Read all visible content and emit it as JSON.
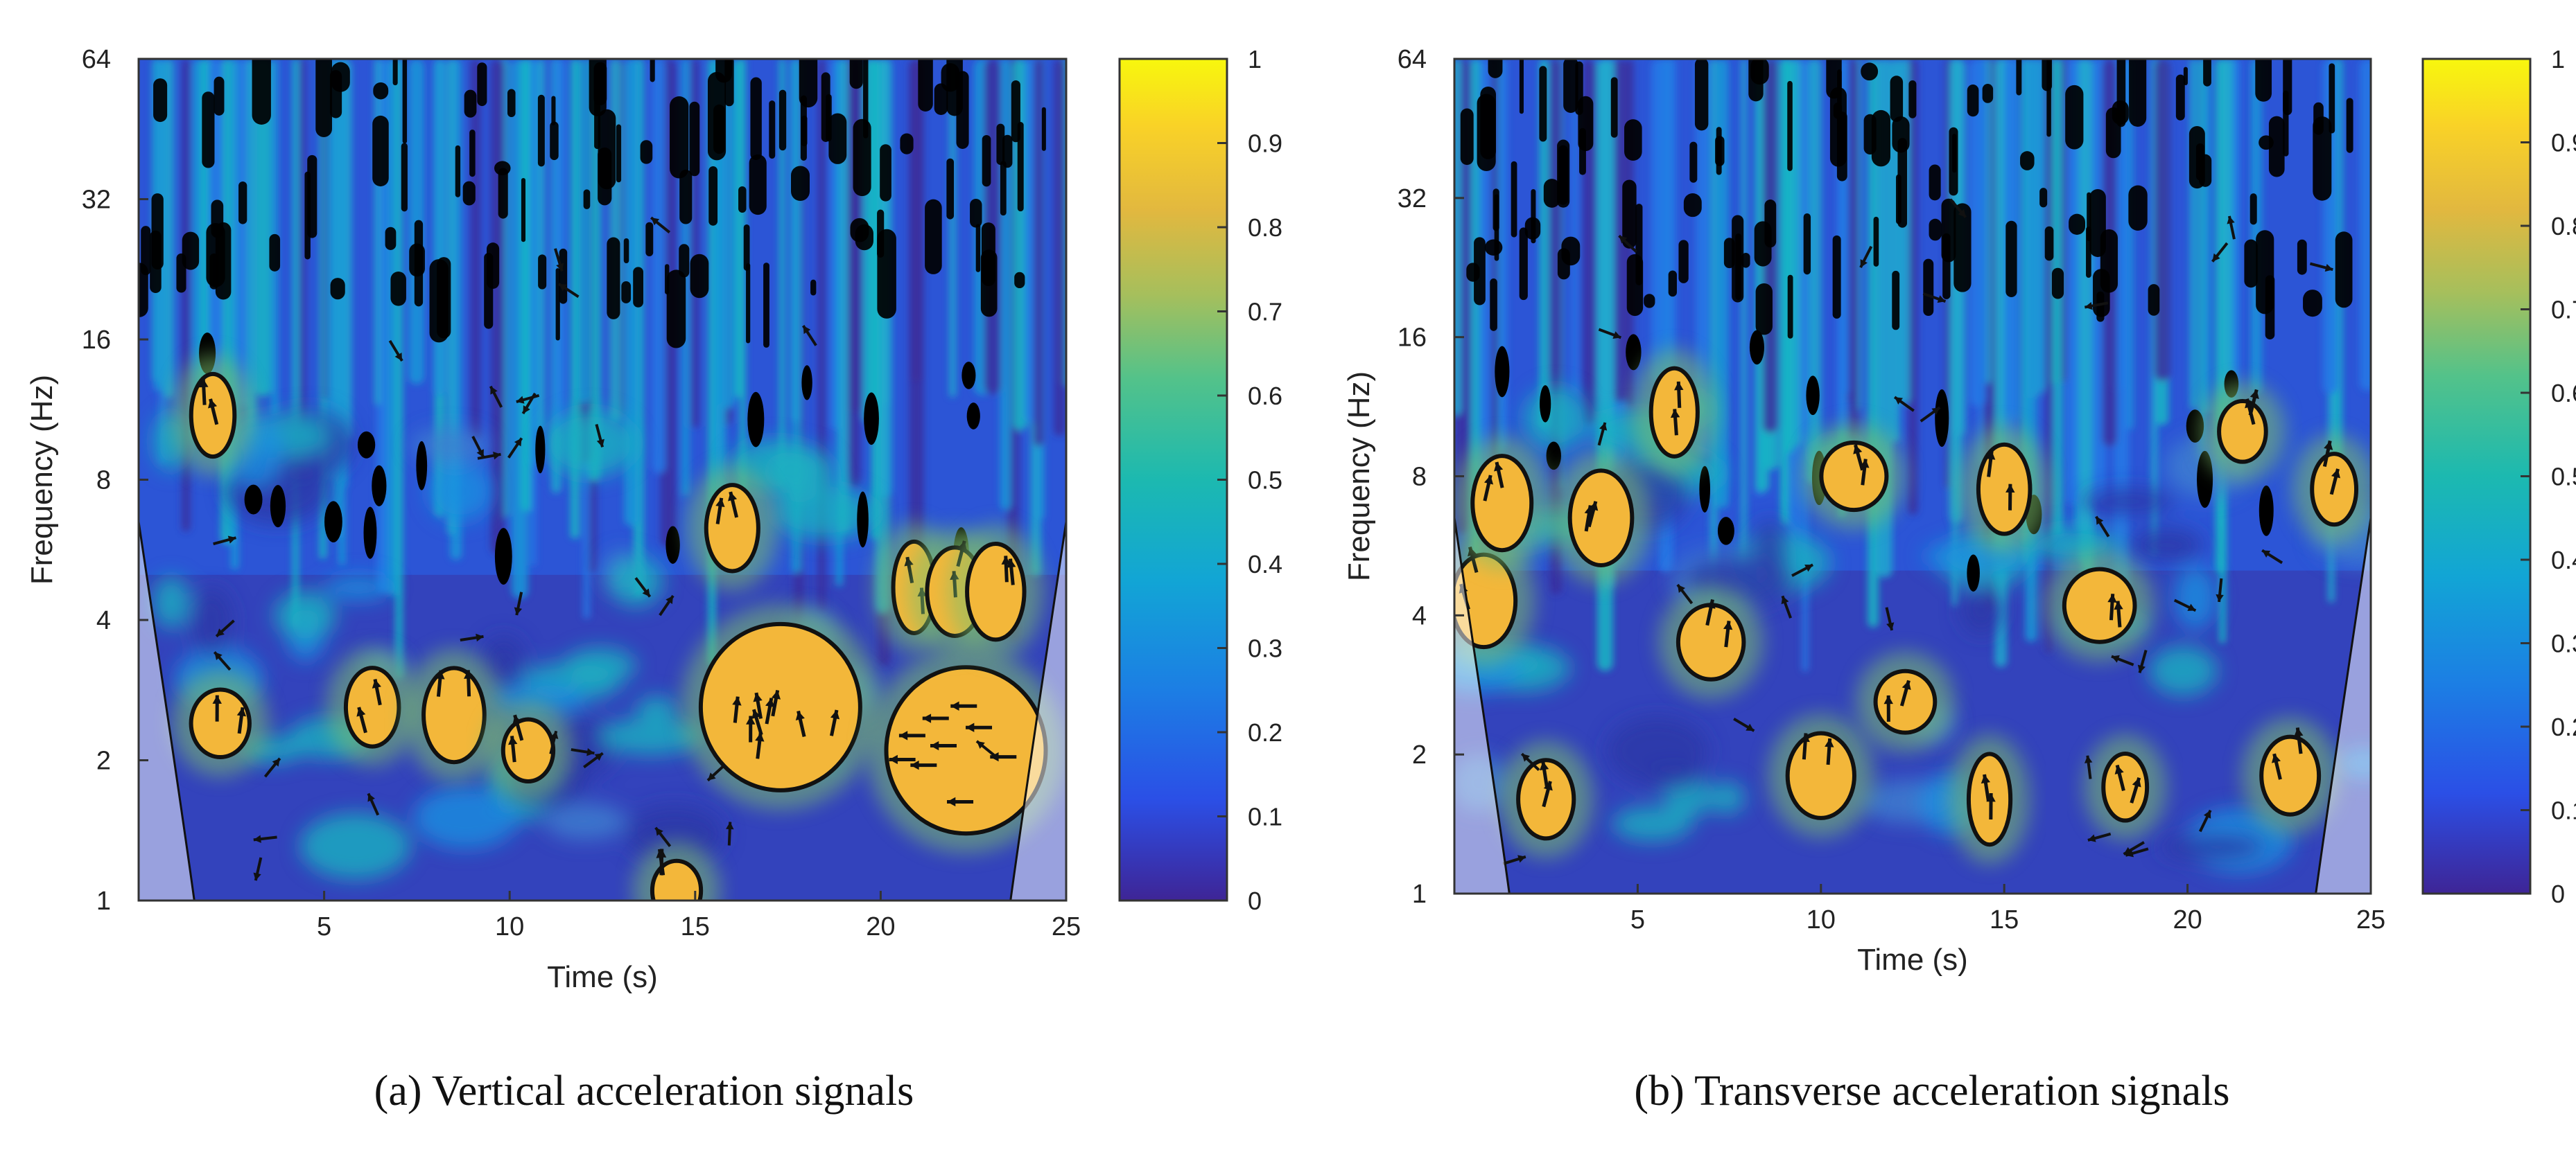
{
  "chart_data": [
    {
      "type": "heatmap",
      "subtype": "wavelet coherence",
      "caption": "(a) Vertical acceleration signals",
      "xlabel": "Time (s)",
      "ylabel": "Frequency (Hz)",
      "xlim": [
        0,
        25
      ],
      "ylim": [
        1,
        64
      ],
      "yscale": "log2",
      "xticks": [
        5,
        10,
        15,
        20,
        25
      ],
      "yticks": [
        1,
        2,
        4,
        8,
        16,
        32,
        64
      ],
      "colorbar": {
        "min": 0,
        "max": 1,
        "ticks": [
          0,
          0.1,
          0.2,
          0.3,
          0.4,
          0.5,
          0.6,
          0.7,
          0.8,
          0.9,
          1
        ]
      },
      "high_coherence_regions": [
        {
          "t": 2.2,
          "f": 2.4
        },
        {
          "t": 6.3,
          "f": 2.6
        },
        {
          "t": 8.5,
          "f": 2.5
        },
        {
          "t": 10.5,
          "f": 2.1
        },
        {
          "t": 2.0,
          "f": 11.0
        },
        {
          "t": 17.3,
          "f": 2.6
        },
        {
          "t": 22.3,
          "f": 2.1
        },
        {
          "t": 20.9,
          "f": 4.7
        },
        {
          "t": 22.0,
          "f": 4.6
        },
        {
          "t": 23.1,
          "f": 4.6
        },
        {
          "t": 16.0,
          "f": 6.3
        },
        {
          "t": 14.5,
          "f": 1.05
        }
      ],
      "legend": ""
    },
    {
      "type": "heatmap",
      "subtype": "wavelet coherence",
      "caption": "(b) Transverse acceleration signals",
      "xlabel": "Time (s)",
      "ylabel": "Frequency (Hz)",
      "xlim": [
        0,
        25
      ],
      "ylim": [
        1,
        64
      ],
      "yscale": "log2",
      "xticks": [
        5,
        10,
        15,
        20,
        25
      ],
      "yticks": [
        1,
        2,
        4,
        8,
        16,
        32,
        64
      ],
      "colorbar": {
        "min": 0,
        "max": 1,
        "ticks": [
          0,
          0.1,
          0.2,
          0.3,
          0.4,
          0.5,
          0.6,
          0.7,
          0.8,
          0.9,
          1
        ]
      },
      "high_coherence_regions": [
        {
          "t": 0.8,
          "f": 4.3
        },
        {
          "t": 2.5,
          "f": 1.6
        },
        {
          "t": 7.0,
          "f": 3.5
        },
        {
          "t": 10.0,
          "f": 1.8
        },
        {
          "t": 12.3,
          "f": 2.6
        },
        {
          "t": 14.6,
          "f": 1.6
        },
        {
          "t": 17.6,
          "f": 4.2
        },
        {
          "t": 18.3,
          "f": 1.7
        },
        {
          "t": 22.8,
          "f": 1.8
        },
        {
          "t": 1.3,
          "f": 7.0
        },
        {
          "t": 4.0,
          "f": 6.5
        },
        {
          "t": 6.0,
          "f": 11.0
        },
        {
          "t": 10.9,
          "f": 8.0
        },
        {
          "t": 15.0,
          "f": 7.5
        },
        {
          "t": 21.5,
          "f": 10.0
        },
        {
          "t": 24.0,
          "f": 7.5
        }
      ],
      "legend": ""
    }
  ],
  "colors": {
    "low": "#3d2a99",
    "mid_low": "#2168e0",
    "mid": "#1fb0b8",
    "mid_high": "#86c25a",
    "high": "#f2b43a",
    "max": "#f8f00c",
    "significance": "#000000"
  }
}
